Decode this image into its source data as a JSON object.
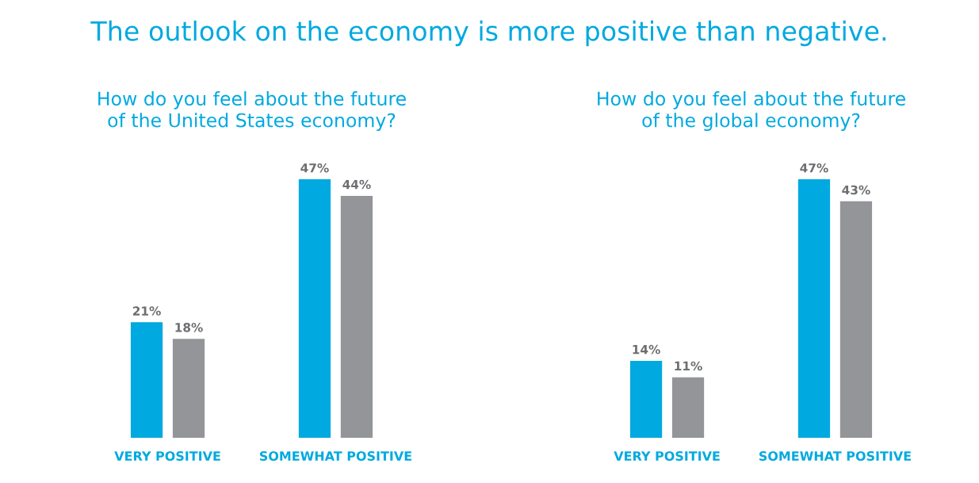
{
  "chart_data": [
    {
      "type": "bar",
      "title": "The outlook on the economy is more positive than negative.",
      "subtitle": "How do you feel about the future\nof the United States economy?",
      "categories": [
        "VERY POSITIVE",
        "SOMEWHAT POSITIVE"
      ],
      "series": [
        {
          "color": "#00a9e0",
          "values": [
            21,
            47
          ],
          "value_labels": [
            "21%",
            "47%"
          ]
        },
        {
          "color": "#939598",
          "values": [
            18,
            44
          ],
          "value_labels": [
            "18%",
            "44%"
          ]
        }
      ],
      "grid": false,
      "legend": false,
      "tick_labels": "x"
    },
    {
      "type": "bar",
      "title": "How do you feel about the future\nof the global economy?",
      "categories": [
        "VERY POSITIVE",
        "SOMEWHAT POSITIVE"
      ],
      "series": [
        {
          "color": "#00a9e0",
          "values": [
            14,
            47
          ],
          "value_labels": [
            "14%",
            "47%"
          ]
        },
        {
          "color": "#939598",
          "values": [
            11,
            43
          ],
          "value_labels": [
            "11%",
            "43%"
          ]
        }
      ],
      "grid": false,
      "legend": false,
      "tick_labels": "x"
    }
  ]
}
